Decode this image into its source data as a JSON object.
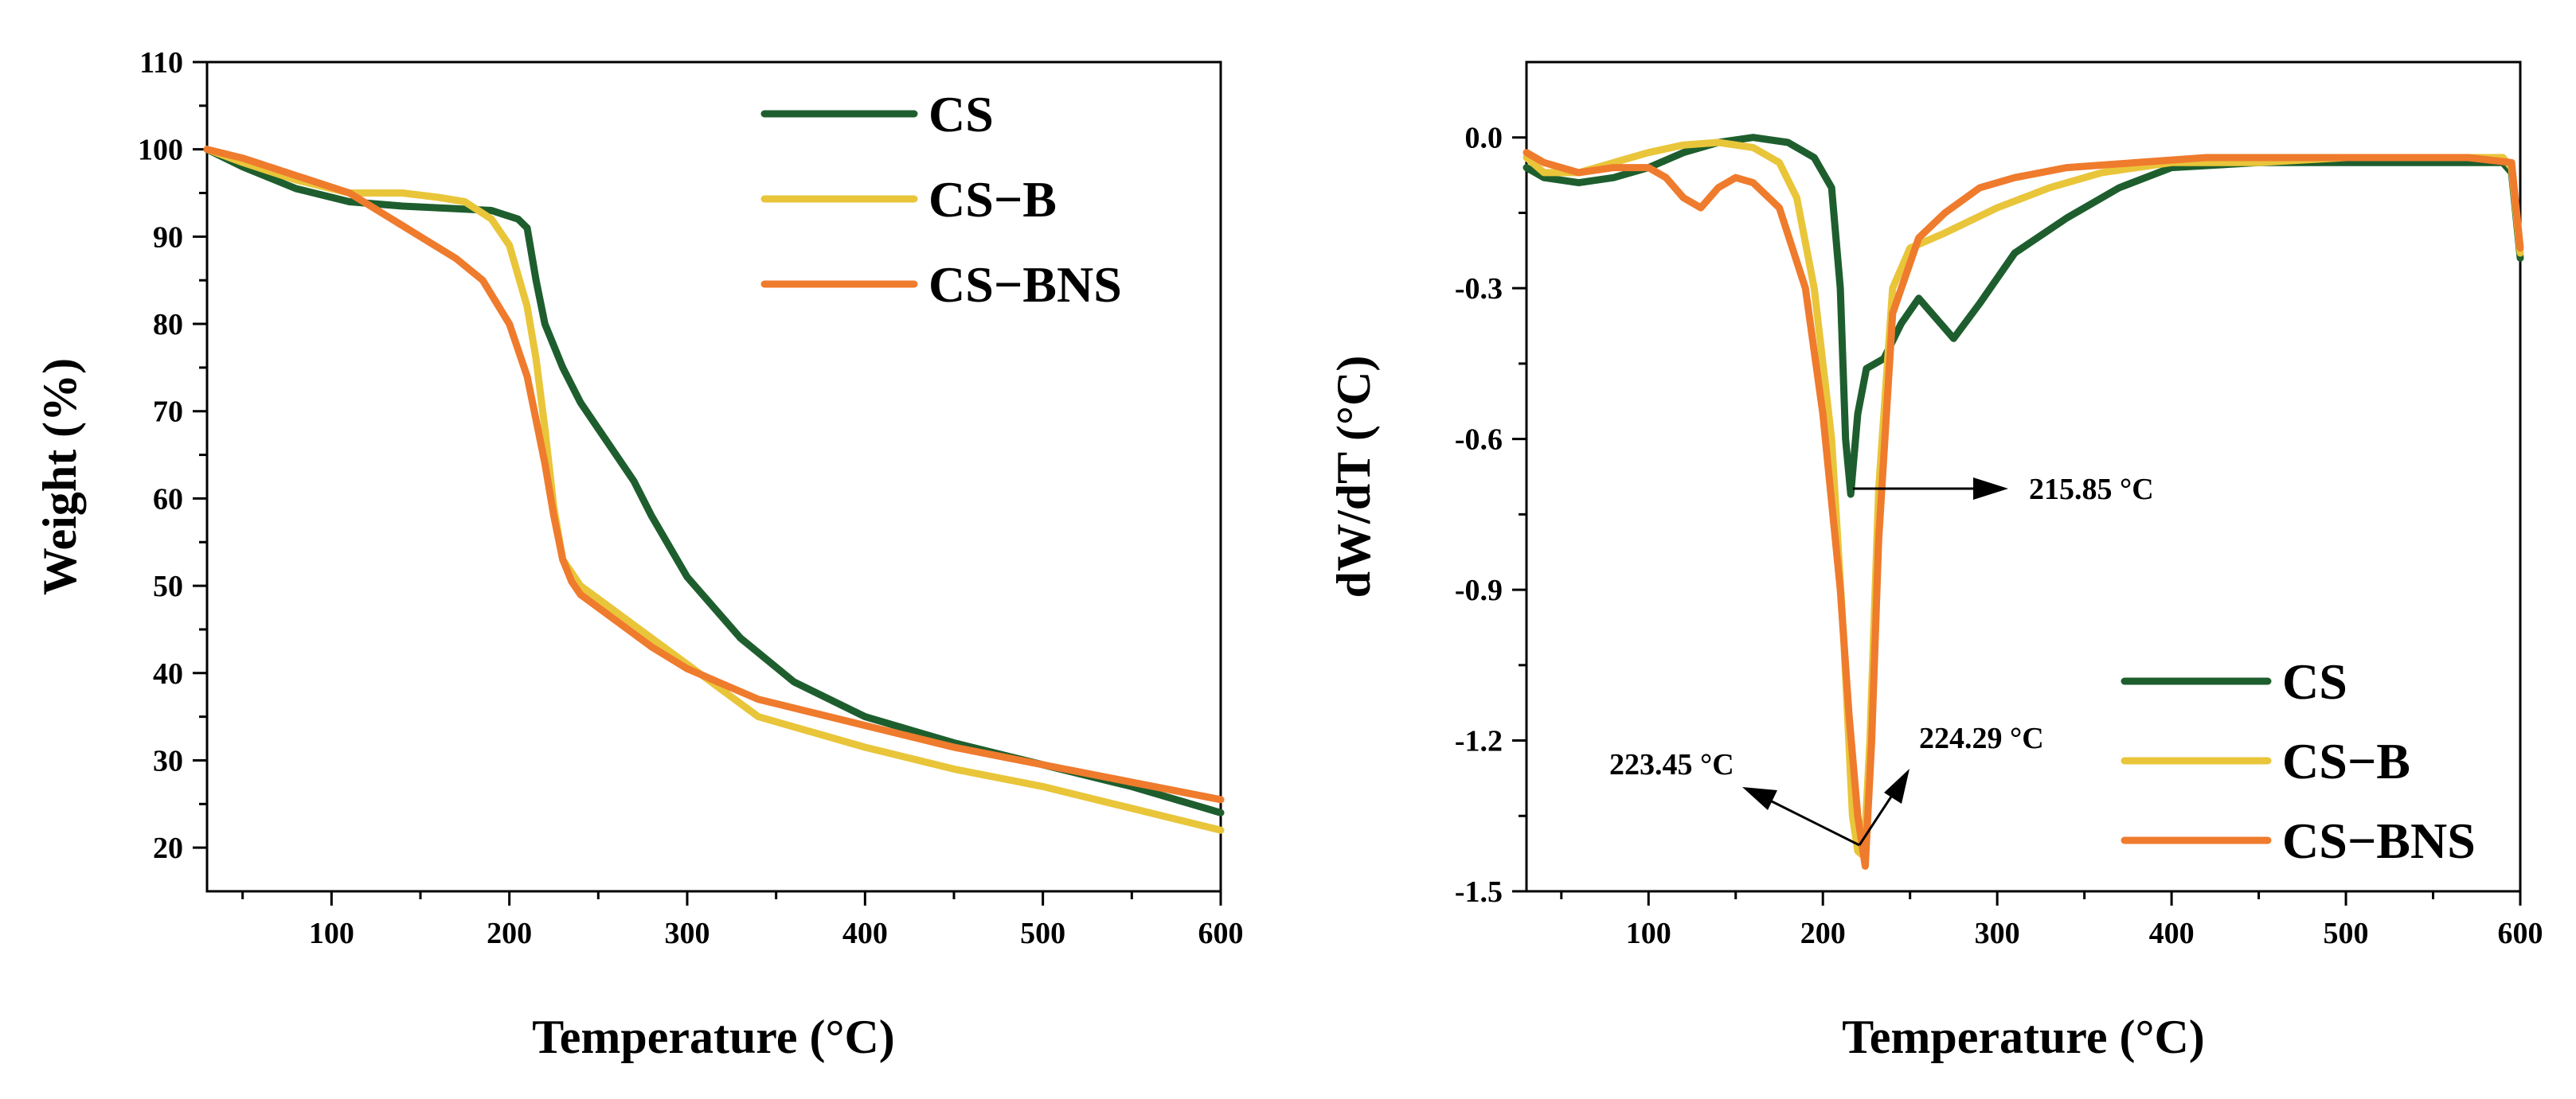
{
  "chart_data": [
    {
      "type": "line",
      "xlabel": "Temperature (°C)",
      "ylabel": "Weight (%)",
      "xlim": [
        30,
        600
      ],
      "ylim": [
        15,
        110
      ],
      "xticks": [
        100,
        200,
        300,
        400,
        500,
        600
      ],
      "yticks": [
        20,
        30,
        40,
        50,
        60,
        70,
        80,
        90,
        100,
        110
      ],
      "legend_position": "top-right",
      "series": [
        {
          "name": "CS",
          "color": "#1e5e2e",
          "x": [
            30,
            50,
            80,
            110,
            140,
            170,
            190,
            205,
            210,
            215,
            220,
            230,
            240,
            250,
            260,
            270,
            280,
            300,
            330,
            360,
            400,
            450,
            500,
            550,
            600
          ],
          "y": [
            100,
            98,
            95.5,
            94,
            93.5,
            93.2,
            93,
            92,
            91,
            85,
            80,
            75,
            71,
            68,
            65,
            62,
            58,
            51,
            44,
            39,
            35,
            32,
            29.5,
            27,
            24
          ]
        },
        {
          "name": "CS−B",
          "color": "#e9c53a",
          "x": [
            30,
            50,
            80,
            110,
            140,
            160,
            175,
            190,
            200,
            210,
            215,
            220,
            225,
            230,
            240,
            260,
            280,
            300,
            340,
            400,
            450,
            500,
            550,
            600
          ],
          "y": [
            100,
            98.5,
            96.5,
            95,
            95,
            94.5,
            94,
            92,
            89,
            82,
            76,
            68,
            59,
            53,
            50,
            47,
            44,
            41,
            35,
            31.5,
            29,
            27,
            24.5,
            22
          ]
        },
        {
          "name": "CS−BNS",
          "color": "#ef7b2d",
          "x": [
            30,
            50,
            80,
            110,
            130,
            150,
            170,
            185,
            200,
            210,
            215,
            220,
            225,
            230,
            235,
            240,
            260,
            280,
            300,
            340,
            400,
            450,
            500,
            550,
            600
          ],
          "y": [
            100,
            99,
            97,
            95,
            92.5,
            90,
            87.5,
            85,
            80,
            74,
            69,
            64,
            58,
            53,
            50.5,
            49,
            46,
            43,
            40.5,
            37,
            34,
            31.5,
            29.5,
            27.5,
            25.5
          ]
        }
      ]
    },
    {
      "type": "line",
      "xlabel": "Temperature (°C)",
      "ylabel": "dW/dT (°C)",
      "xlim": [
        30,
        600
      ],
      "ylim": [
        -1.5,
        0.15
      ],
      "xticks": [
        100,
        200,
        300,
        400,
        500,
        600
      ],
      "yticks": [
        -1.5,
        -1.2,
        -0.9,
        -0.6,
        -0.3,
        0.0
      ],
      "ytick_labels": [
        "-1.5",
        "-1.2",
        "-0.9",
        "-0.6",
        "-0.3",
        "0.0"
      ],
      "legend_position": "bottom-right",
      "annotations": [
        "215.85 °C",
        "223.45 °C",
        "224.29 °C"
      ],
      "series": [
        {
          "name": "CS",
          "color": "#1e5e2e",
          "x": [
            30,
            40,
            60,
            80,
            100,
            120,
            140,
            160,
            180,
            195,
            205,
            210,
            213,
            216,
            220,
            225,
            230,
            235,
            245,
            255,
            265,
            275,
            290,
            310,
            340,
            370,
            400,
            450,
            500,
            550,
            590,
            595,
            600
          ],
          "y": [
            -0.06,
            -0.08,
            -0.09,
            -0.08,
            -0.06,
            -0.03,
            -0.01,
            0,
            -0.01,
            -0.04,
            -0.1,
            -0.3,
            -0.6,
            -0.71,
            -0.55,
            -0.46,
            -0.45,
            -0.44,
            -0.37,
            -0.32,
            -0.36,
            -0.4,
            -0.33,
            -0.23,
            -0.16,
            -0.1,
            -0.06,
            -0.05,
            -0.05,
            -0.05,
            -0.05,
            -0.07,
            -0.24
          ]
        },
        {
          "name": "CS−B",
          "color": "#e9c53a",
          "x": [
            30,
            40,
            60,
            80,
            100,
            120,
            140,
            160,
            175,
            185,
            195,
            205,
            212,
            217,
            220,
            223.45,
            227,
            232,
            240,
            250,
            270,
            300,
            330,
            360,
            400,
            450,
            500,
            550,
            590,
            595,
            600
          ],
          "y": [
            -0.04,
            -0.07,
            -0.07,
            -0.05,
            -0.03,
            -0.015,
            -0.01,
            -0.02,
            -0.05,
            -0.12,
            -0.3,
            -0.6,
            -1.0,
            -1.35,
            -1.42,
            -1.43,
            -1.2,
            -0.7,
            -0.3,
            -0.22,
            -0.19,
            -0.14,
            -0.1,
            -0.07,
            -0.05,
            -0.05,
            -0.04,
            -0.04,
            -0.04,
            -0.06,
            -0.23
          ]
        },
        {
          "name": "CS−BNS",
          "color": "#ef7b2d",
          "x": [
            30,
            40,
            60,
            80,
            100,
            110,
            120,
            130,
            140,
            150,
            160,
            175,
            190,
            200,
            210,
            215,
            220,
            224.29,
            228,
            232,
            240,
            255,
            270,
            290,
            310,
            340,
            380,
            420,
            470,
            520,
            570,
            595,
            600
          ],
          "y": [
            -0.03,
            -0.05,
            -0.07,
            -0.06,
            -0.06,
            -0.08,
            -0.12,
            -0.14,
            -0.1,
            -0.08,
            -0.09,
            -0.14,
            -0.3,
            -0.55,
            -0.9,
            -1.15,
            -1.35,
            -1.45,
            -1.2,
            -0.8,
            -0.35,
            -0.2,
            -0.15,
            -0.1,
            -0.08,
            -0.06,
            -0.05,
            -0.04,
            -0.04,
            -0.04,
            -0.04,
            -0.05,
            -0.22
          ]
        }
      ]
    }
  ]
}
